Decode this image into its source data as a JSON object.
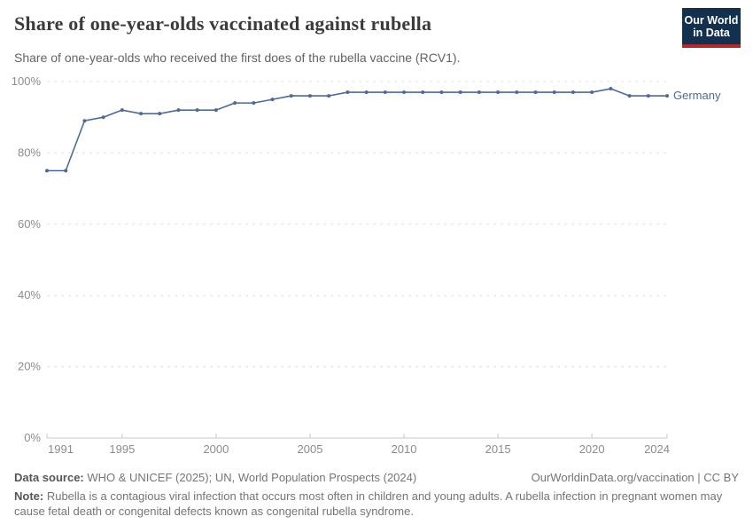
{
  "header": {
    "title": "Share of one-year-olds vaccinated against rubella",
    "subtitle": "Share of one-year-olds who received the first does of the rubella vaccine (RCV1).",
    "logo": {
      "line1": "Our World",
      "line2": "in Data"
    }
  },
  "chart_data": {
    "type": "line",
    "title": "Share of one-year-olds vaccinated against rubella",
    "xlabel": "",
    "ylabel": "",
    "x": [
      1991,
      1992,
      1993,
      1994,
      1995,
      1996,
      1997,
      1998,
      1999,
      2000,
      2001,
      2002,
      2003,
      2004,
      2005,
      2006,
      2007,
      2008,
      2009,
      2010,
      2011,
      2012,
      2013,
      2014,
      2015,
      2016,
      2017,
      2018,
      2019,
      2020,
      2021,
      2022,
      2023,
      2024
    ],
    "series": [
      {
        "name": "Germany",
        "color": "#4c6a9c",
        "values": [
          75,
          75,
          89,
          90,
          92,
          91,
          91,
          92,
          92,
          92,
          94,
          94,
          95,
          96,
          96,
          96,
          97,
          97,
          97,
          97,
          97,
          97,
          97,
          97,
          97,
          97,
          97,
          97,
          97,
          97,
          98,
          96,
          96,
          96
        ]
      }
    ],
    "xlim": [
      1991,
      2024
    ],
    "ylim": [
      0,
      100
    ],
    "x_tick_labels": [
      1991,
      1995,
      2000,
      2005,
      2010,
      2015,
      2020,
      2024
    ],
    "y_ticks": [
      0,
      20,
      40,
      60,
      80,
      100
    ],
    "y_tick_suffix": "%",
    "grid": "horizontal-dashed",
    "legend_position": "end-of-line"
  },
  "footer": {
    "data_source_label": "Data source:",
    "data_source": " WHO & UNICEF (2025); UN, World Population Prospects (2024)",
    "link": "OurWorldinData.org/vaccination",
    "separator": " | ",
    "license": "CC BY",
    "note_label": "Note:",
    "note": " Rubella is a contagious viral infection that occurs most often in children and young adults. A rubella infection in pregnant women may cause fetal death or congenital defects known as congenital rubella syndrome."
  },
  "colors": {
    "line": "#4c6a9c",
    "grid": "#e0e0e0",
    "axis": "#c8c8c8",
    "tick_text": "#8c8c8c"
  }
}
